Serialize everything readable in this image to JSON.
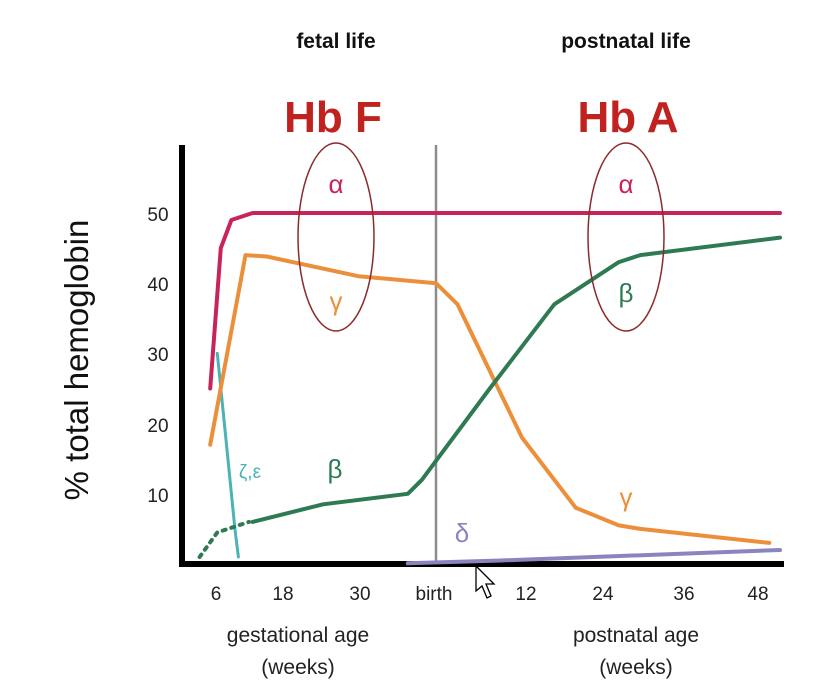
{
  "header": {
    "fetal": "fetal  life",
    "postnatal": "postnatal life",
    "hbf": "Hb F",
    "hba": "Hb A"
  },
  "colors": {
    "alpha": "#c8245a",
    "gamma": "#ec8f3a",
    "beta": "#2e7a53",
    "delta": "#8a85c0",
    "zeta": "#4bb3b5",
    "oval": "#8b2b2b",
    "headline": "#c0221f",
    "divider": "#8c8c8c"
  },
  "chart_data": {
    "type": "line",
    "ylabel": "% total hemoglobin",
    "xlabel_left": "gestational age",
    "xlabel_left_unit": "(weeks)",
    "xlabel_right": "postnatal age",
    "xlabel_right_unit": "(weeks)",
    "ylim": [
      0,
      58
    ],
    "yticks": [
      "10",
      "20",
      "30",
      "40",
      "50"
    ],
    "xticks": [
      "6",
      "18",
      "30",
      "birth",
      "12",
      "24",
      "36",
      "48"
    ],
    "series": [
      {
        "name": "α",
        "key": "alpha",
        "points": [
          [
            4,
            25
          ],
          [
            5.5,
            45
          ],
          [
            7,
            49
          ],
          [
            10,
            50
          ],
          [
            25,
            50
          ],
          [
            40,
            50
          ],
          [
            55,
            50
          ],
          [
            68,
            50
          ]
        ]
      },
      {
        "name": "γ",
        "key": "gamma",
        "points": [
          [
            4,
            17
          ],
          [
            9,
            44
          ],
          [
            12,
            43.8
          ],
          [
            25,
            41
          ],
          [
            36,
            40
          ],
          [
            38,
            37
          ],
          [
            44,
            18
          ],
          [
            49,
            8
          ],
          [
            53,
            5.5
          ],
          [
            55,
            5
          ],
          [
            67,
            3
          ]
        ]
      },
      {
        "name": "β",
        "key": "beta",
        "points": [
          [
            10,
            6
          ],
          [
            20,
            8.5
          ],
          [
            32,
            10
          ],
          [
            34,
            12
          ],
          [
            41,
            25
          ],
          [
            47,
            37
          ],
          [
            53,
            43
          ],
          [
            55,
            44
          ],
          [
            68,
            46.5
          ]
        ]
      },
      {
        "name": "δ",
        "key": "delta",
        "points": [
          [
            32,
            0.1
          ],
          [
            42,
            0.5
          ],
          [
            68,
            2
          ]
        ]
      },
      {
        "name": "ζ,ε",
        "key": "zeta",
        "points": [
          [
            5,
            30
          ],
          [
            6.5,
            15
          ],
          [
            7.5,
            5
          ],
          [
            8,
            1
          ]
        ]
      }
    ],
    "annotations": {
      "alpha_left": "α",
      "gamma_left": "γ",
      "alpha_right": "α",
      "beta_right": "β",
      "beta_low": "β",
      "gamma_low": "γ",
      "delta_low": "δ",
      "zeta_eps": "ζ,ε"
    }
  }
}
